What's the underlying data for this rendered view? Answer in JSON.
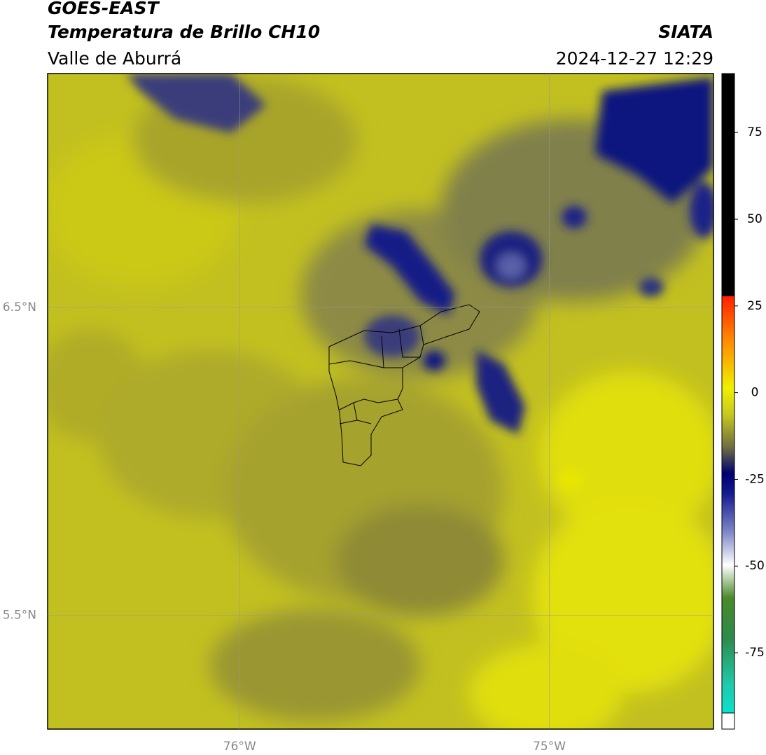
{
  "header": {
    "title": "GOES-EAST",
    "subtitle": "Temperatura de Brillo CH10",
    "region": "Valle de Aburrá",
    "source": "SIATA",
    "datetime": "2024-12-27 12:29"
  },
  "map": {
    "xlim": [
      -76.62,
      -74.47
    ],
    "ylim": [
      5.13,
      7.26
    ],
    "xticks": [
      {
        "value": -76,
        "label": "76°W"
      },
      {
        "value": -75,
        "label": "75°W"
      }
    ],
    "yticks": [
      {
        "value": 6.5,
        "label": "6.5°N"
      },
      {
        "value": 5.5,
        "label": "5.5°N"
      }
    ]
  },
  "colorbar": {
    "lim": [
      -97,
      92
    ],
    "ticks": [
      75,
      50,
      25,
      0,
      -25,
      -50,
      -75
    ]
  }
}
